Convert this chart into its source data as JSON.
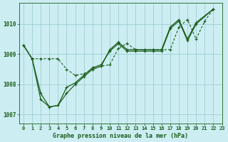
{
  "title": "Graphe pression niveau de la mer (hPa)",
  "background_color": "#cceef2",
  "grid_color": "#9ecdd4",
  "line_color": "#1a5c1a",
  "xlim": [
    -0.5,
    23
  ],
  "ylim": [
    1006.7,
    1010.7
  ],
  "yticks": [
    1007,
    1008,
    1009,
    1010
  ],
  "xticks": [
    0,
    1,
    2,
    3,
    4,
    5,
    6,
    7,
    8,
    9,
    10,
    11,
    12,
    13,
    14,
    15,
    16,
    17,
    18,
    19,
    20,
    21,
    22,
    23
  ],
  "series1_x": [
    0,
    1,
    2,
    3,
    4,
    5,
    6,
    7,
    8,
    9,
    10,
    11,
    12,
    13,
    14,
    15,
    16,
    17,
    18,
    19,
    20,
    21,
    22
  ],
  "series1_y": [
    1009.3,
    1008.85,
    1008.85,
    1008.85,
    1008.85,
    1008.5,
    1008.3,
    1008.35,
    1008.5,
    1008.6,
    1008.65,
    1009.2,
    1009.35,
    1009.15,
    1009.15,
    1009.15,
    1009.15,
    1009.15,
    1009.9,
    1010.15,
    1009.5,
    1010.1,
    1010.5
  ],
  "series2_x": [
    0,
    1,
    2,
    3,
    4,
    5,
    6,
    7,
    8,
    9,
    10,
    11,
    12,
    13,
    14,
    15,
    16,
    17,
    18,
    19,
    20,
    22
  ],
  "series2_y": [
    1009.3,
    1008.85,
    1007.7,
    1007.25,
    1007.3,
    1007.7,
    1008.0,
    1008.25,
    1008.5,
    1008.6,
    1009.15,
    1009.4,
    1009.15,
    1009.15,
    1009.15,
    1009.15,
    1009.15,
    1009.9,
    1010.15,
    1009.5,
    1010.05,
    1010.5
  ],
  "series3_x": [
    0,
    1,
    2,
    3,
    4,
    5,
    6,
    7,
    8,
    9,
    10,
    11,
    12,
    13,
    14,
    15,
    16,
    17,
    18,
    19,
    20,
    22
  ],
  "series3_y": [
    1009.3,
    1008.85,
    1007.5,
    1007.25,
    1007.3,
    1007.9,
    1008.05,
    1008.3,
    1008.55,
    1008.65,
    1009.1,
    1009.35,
    1009.1,
    1009.1,
    1009.1,
    1009.1,
    1009.1,
    1009.85,
    1010.1,
    1009.45,
    1010.0,
    1010.5
  ],
  "fontsize_tick": 5.0,
  "fontsize_label": 6.0
}
